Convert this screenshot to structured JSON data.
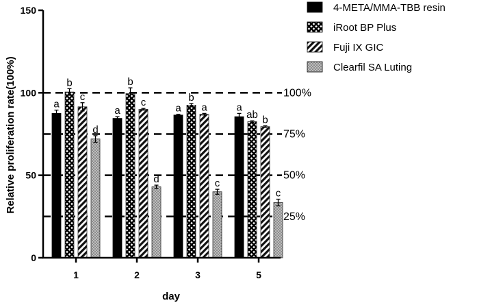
{
  "chart_data": {
    "type": "bar",
    "title": "",
    "xlabel": "day",
    "ylabel": "Relative proliferation rate(100%)",
    "ylim": [
      0,
      150
    ],
    "yticks": [
      0,
      50,
      100,
      150
    ],
    "categories": [
      "1",
      "2",
      "3",
      "5"
    ],
    "legend_position": "top-right",
    "series": [
      {
        "name": "4-META/MMA-TBB resin",
        "pattern": "solid",
        "color": "#000000",
        "values": [
          87.5,
          84.5,
          86.5,
          85.5
        ],
        "errors": [
          2.0,
          1.0,
          0.5,
          2.0
        ],
        "sig": [
          "a",
          "a",
          "a",
          "a"
        ]
      },
      {
        "name": "iRoot BP Plus",
        "pattern": "crosshatch",
        "color": "#000000",
        "values": [
          100.5,
          99.5,
          92.5,
          82.5
        ],
        "errors": [
          2.0,
          3.5,
          1.0,
          0.5
        ],
        "sig": [
          "b",
          "b",
          "b",
          "ab"
        ]
      },
      {
        "name": "Fuji IX GIC",
        "pattern": "diagonal",
        "color": "#000000",
        "values": [
          91.5,
          90.0,
          87.0,
          79.5
        ],
        "errors": [
          2.5,
          0.5,
          0.5,
          0.5
        ],
        "sig": [
          "c",
          "c",
          "a",
          "b"
        ]
      },
      {
        "name": "Clearfil SA Luting",
        "pattern": "dots",
        "color": "#999999",
        "values": [
          72.0,
          43.0,
          40.0,
          33.5
        ],
        "errors": [
          2.0,
          1.0,
          1.5,
          2.0
        ],
        "sig": [
          "d",
          "d",
          "c",
          "c"
        ]
      }
    ],
    "reference_lines": [
      {
        "value": 100,
        "label": "100%"
      },
      {
        "value": 75,
        "label": "75%"
      },
      {
        "value": 50,
        "label": "50%"
      },
      {
        "value": 25,
        "label": "25%"
      }
    ]
  }
}
